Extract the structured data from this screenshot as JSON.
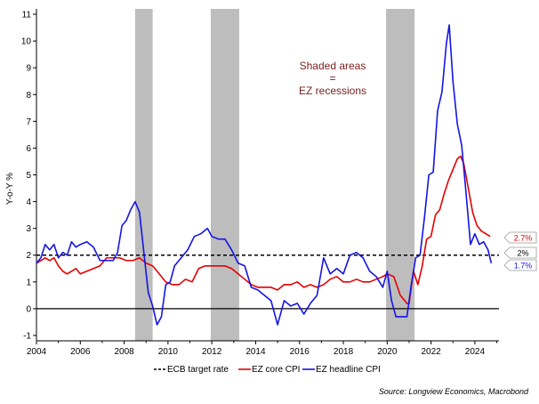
{
  "chart_data": {
    "type": "line",
    "ylabel": "Y-o-Y %",
    "xlim": [
      2004,
      2025.1
    ],
    "ylim": [
      -1.2,
      11.2
    ],
    "x_ticks": [
      {
        "value": 2004,
        "label": "2004"
      },
      {
        "value": 2006,
        "label": "2006"
      },
      {
        "value": 2008,
        "label": "2008"
      },
      {
        "value": 2010,
        "label": "2010"
      },
      {
        "value": 2012,
        "label": "2012"
      },
      {
        "value": 2014,
        "label": "2014"
      },
      {
        "value": 2016,
        "label": "2016"
      },
      {
        "value": 2018,
        "label": "2018"
      },
      {
        "value": 2020,
        "label": "2020"
      },
      {
        "value": 2022,
        "label": "2022"
      },
      {
        "value": 2024,
        "label": "2024"
      }
    ],
    "y_ticks": [
      {
        "value": -1,
        "label": "-1"
      },
      {
        "value": 0,
        "label": "0"
      },
      {
        "value": 1,
        "label": "1"
      },
      {
        "value": 2,
        "label": "2"
      },
      {
        "value": 3,
        "label": "3"
      },
      {
        "value": 4,
        "label": "4"
      },
      {
        "value": 5,
        "label": "5"
      },
      {
        "value": 6,
        "label": "6"
      },
      {
        "value": 7,
        "label": "7"
      },
      {
        "value": 8,
        "label": "8"
      },
      {
        "value": 9,
        "label": "9"
      },
      {
        "value": 10,
        "label": "10"
      },
      {
        "value": 11,
        "label": "11"
      }
    ],
    "recessions": [
      {
        "start": 2008.5,
        "end": 2009.3
      },
      {
        "start": 2011.95,
        "end": 2013.25
      },
      {
        "start": 2019.95,
        "end": 2021.25
      }
    ],
    "annotation": [
      "Shaded areas",
      "=",
      "EZ recessions"
    ],
    "series": [
      {
        "name": "ECB target rate",
        "color": "#000000",
        "dashed": true,
        "x": [
          2004,
          2025.1
        ],
        "y": [
          2,
          2
        ]
      },
      {
        "name": "EZ core CPI",
        "color": "#e60000",
        "dashed": false,
        "x": [
          2004.0,
          2004.2,
          2004.4,
          2004.6,
          2004.8,
          2005.0,
          2005.2,
          2005.4,
          2005.6,
          2005.8,
          2006.0,
          2006.3,
          2006.6,
          2006.9,
          2007.2,
          2007.5,
          2007.8,
          2008.1,
          2008.4,
          2008.7,
          2009.0,
          2009.3,
          2009.6,
          2009.9,
          2010.2,
          2010.5,
          2010.8,
          2011.1,
          2011.4,
          2011.7,
          2012.0,
          2012.3,
          2012.6,
          2012.9,
          2013.2,
          2013.5,
          2013.8,
          2014.1,
          2014.4,
          2014.7,
          2015.0,
          2015.3,
          2015.6,
          2015.9,
          2016.2,
          2016.5,
          2016.8,
          2017.1,
          2017.4,
          2017.7,
          2018.0,
          2018.3,
          2018.6,
          2018.9,
          2019.2,
          2019.5,
          2019.8,
          2020.0,
          2020.3,
          2020.6,
          2020.9,
          2021.0,
          2021.2,
          2021.4,
          2021.6,
          2021.8,
          2022.0,
          2022.2,
          2022.4,
          2022.6,
          2022.8,
          2023.0,
          2023.2,
          2023.35,
          2023.5,
          2023.7,
          2023.9,
          2024.1,
          2024.3,
          2024.5,
          2024.7
        ],
        "y": [
          1.7,
          1.8,
          1.9,
          1.8,
          1.9,
          1.6,
          1.4,
          1.3,
          1.4,
          1.5,
          1.3,
          1.4,
          1.5,
          1.6,
          1.9,
          1.9,
          1.9,
          1.8,
          1.8,
          1.9,
          1.7,
          1.6,
          1.3,
          1.0,
          0.9,
          0.9,
          1.1,
          1.0,
          1.5,
          1.6,
          1.6,
          1.6,
          1.6,
          1.5,
          1.3,
          1.1,
          0.9,
          0.8,
          0.8,
          0.8,
          0.7,
          0.9,
          0.9,
          1.0,
          0.8,
          0.9,
          0.8,
          0.9,
          1.1,
          1.2,
          1.0,
          1.0,
          1.1,
          1.0,
          1.0,
          1.1,
          1.2,
          1.3,
          1.2,
          0.5,
          0.2,
          0.2,
          1.4,
          0.9,
          1.6,
          2.6,
          2.7,
          3.5,
          3.7,
          4.3,
          4.8,
          5.2,
          5.6,
          5.7,
          5.4,
          4.5,
          3.6,
          3.1,
          2.9,
          2.8,
          2.7
        ]
      },
      {
        "name": "EZ headline CPI",
        "color": "#1414e6",
        "dashed": false,
        "x": [
          2004.0,
          2004.2,
          2004.4,
          2004.6,
          2004.8,
          2005.0,
          2005.2,
          2005.4,
          2005.6,
          2005.8,
          2006.0,
          2006.3,
          2006.6,
          2006.9,
          2007.2,
          2007.5,
          2007.7,
          2007.9,
          2008.1,
          2008.3,
          2008.5,
          2008.7,
          2008.9,
          2009.1,
          2009.3,
          2009.5,
          2009.7,
          2009.9,
          2010.1,
          2010.3,
          2010.6,
          2010.9,
          2011.2,
          2011.5,
          2011.8,
          2012.0,
          2012.3,
          2012.6,
          2012.9,
          2013.2,
          2013.5,
          2013.8,
          2014.1,
          2014.4,
          2014.7,
          2015.0,
          2015.3,
          2015.6,
          2015.9,
          2016.2,
          2016.5,
          2016.8,
          2017.1,
          2017.4,
          2017.7,
          2018.0,
          2018.3,
          2018.6,
          2018.9,
          2019.2,
          2019.5,
          2019.8,
          2020.0,
          2020.2,
          2020.4,
          2020.7,
          2020.9,
          2021.1,
          2021.3,
          2021.5,
          2021.7,
          2021.9,
          2022.1,
          2022.3,
          2022.5,
          2022.7,
          2022.83,
          2023.0,
          2023.2,
          2023.4,
          2023.6,
          2023.8,
          2024.0,
          2024.2,
          2024.4,
          2024.6,
          2024.75
        ],
        "y": [
          1.7,
          1.9,
          2.4,
          2.2,
          2.4,
          1.9,
          2.1,
          2.0,
          2.5,
          2.3,
          2.4,
          2.5,
          2.3,
          1.8,
          1.8,
          1.8,
          2.1,
          3.1,
          3.3,
          3.7,
          4.0,
          3.6,
          2.1,
          0.6,
          0.1,
          -0.6,
          -0.3,
          0.9,
          1.0,
          1.6,
          1.9,
          2.2,
          2.7,
          2.8,
          3.0,
          2.7,
          2.6,
          2.6,
          2.2,
          1.7,
          1.6,
          0.8,
          0.7,
          0.5,
          0.3,
          -0.6,
          0.3,
          0.1,
          0.2,
          -0.2,
          0.2,
          0.5,
          1.9,
          1.3,
          1.5,
          1.3,
          2.0,
          2.1,
          1.9,
          1.4,
          1.2,
          0.8,
          1.4,
          0.3,
          -0.3,
          -0.3,
          -0.3,
          0.9,
          1.9,
          2.0,
          3.4,
          5.0,
          5.1,
          7.4,
          8.1,
          9.9,
          10.6,
          8.5,
          6.9,
          6.1,
          4.3,
          2.4,
          2.8,
          2.4,
          2.5,
          2.2,
          1.7
        ]
      }
    ],
    "end_labels": [
      {
        "text": "2.7%",
        "value": 2.7,
        "color": "#e60000"
      },
      {
        "text": "2%",
        "value": 2.0,
        "color": "#000000"
      },
      {
        "text": "1.7%",
        "value": 1.7,
        "color": "#1414e6"
      }
    ],
    "legend_position": "bottom-center"
  },
  "source": "Source: Longview Economics, Macrobond"
}
